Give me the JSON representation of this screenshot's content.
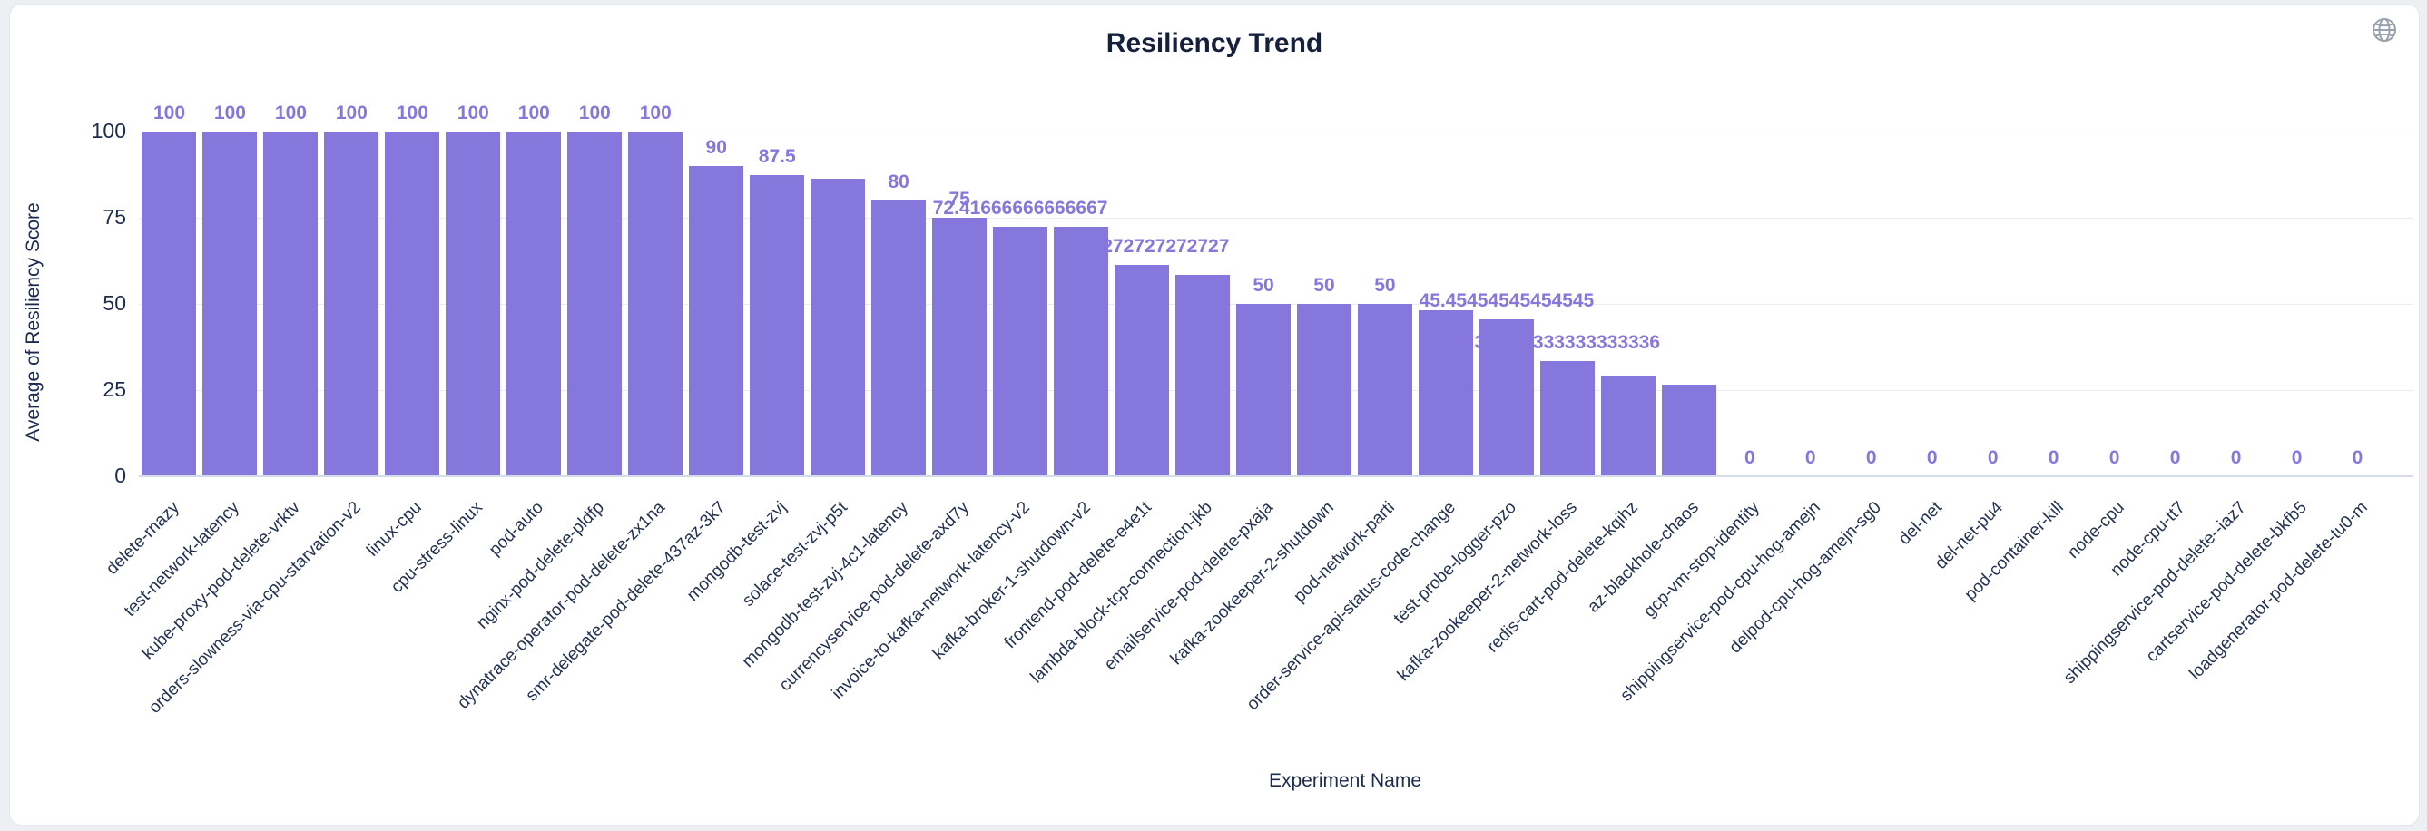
{
  "header": {
    "title": "Resiliency Trend"
  },
  "chart_data": {
    "type": "bar",
    "title": "Resiliency Trend",
    "xlabel": "Experiment Name",
    "ylabel": "Average of Resiliency Score",
    "ylim": [
      0,
      100
    ],
    "yticks": [
      0,
      25,
      50,
      75,
      100
    ],
    "grid": true,
    "bar_color": "#8577db",
    "value_label_color": "#8577db",
    "axis_text_color": "#1c2b4d",
    "bars": [
      {
        "name": "delete-rnazy",
        "value": 100,
        "label": "100"
      },
      {
        "name": "test-network-latency",
        "value": 100,
        "label": "100"
      },
      {
        "name": "kube-proxy-pod-delete-vrktv",
        "value": 100,
        "label": "100"
      },
      {
        "name": "orders-slowness-via-cpu-starvation-v2",
        "value": 100,
        "label": "100"
      },
      {
        "name": "linux-cpu",
        "value": 100,
        "label": "100"
      },
      {
        "name": "cpu-stress-linux",
        "value": 100,
        "label": "100"
      },
      {
        "name": "pod-auto",
        "value": 100,
        "label": "100"
      },
      {
        "name": "nginx-pod-delete-pldfp",
        "value": 100,
        "label": "100"
      },
      {
        "name": "dynatrace-operator-pod-delete-zx1na",
        "value": 100,
        "label": "100"
      },
      {
        "name": "smr-delegate-pod-delete-437az-3k7",
        "value": 90,
        "label": "90"
      },
      {
        "name": "mongodb-test-zvj",
        "value": 87.5,
        "label": "87.5"
      },
      {
        "name": "solace-test-zvj-p5t",
        "value": 86.36363636363636,
        "label": ""
      },
      {
        "name": "mongodb-test-zvj-4c1-latency",
        "value": 80,
        "label": "80"
      },
      {
        "name": "currencyservice-pod-delete-axd7y",
        "value": 75,
        "label": "75"
      },
      {
        "name": "invoice-to-kafka-network-latency-v2",
        "value": 72.41666666666667,
        "label": "72.41666666666667"
      },
      {
        "name": "kafka-broker-1-shutdown-v2",
        "value": 72.27272727272727,
        "label": ""
      },
      {
        "name": "frontend-pod-delete-e4e1t",
        "value": 61.27272727272727,
        "label": "61.27272727272727"
      },
      {
        "name": "lambda-block-tcp-connection-jkb",
        "value": 58.33333333333333,
        "label": ""
      },
      {
        "name": "emailservice-pod-delete-pxaja",
        "value": 50,
        "label": "50"
      },
      {
        "name": "kafka-zookeeper-2-shutdown",
        "value": 50,
        "label": "50"
      },
      {
        "name": "pod-network-parti",
        "value": 50,
        "label": "50"
      },
      {
        "name": "order-service-api-status-code-change",
        "value": 48.18181818181818,
        "label": ""
      },
      {
        "name": "test-probe-logger-pzo",
        "value": 45.45454545454545,
        "label": "45.45454545454545"
      },
      {
        "name": "kafka-zookeeper-2-network-loss",
        "value": 33.333333333333336,
        "label": "33.333333333333336"
      },
      {
        "name": "redis-cart-pod-delete-kqihz",
        "value": 29.09090909090909,
        "label": ""
      },
      {
        "name": "az-blackhole-chaos",
        "value": 26.666666666666668,
        "label": ""
      },
      {
        "name": "gcp-vm-stop-identity",
        "value": 0,
        "label": "0"
      },
      {
        "name": "shippingservice-pod-cpu-hog-amejn",
        "value": 0,
        "label": "0"
      },
      {
        "name": "delpod-cpu-hog-amejn-sg0",
        "value": 0,
        "label": "0"
      },
      {
        "name": "del-net",
        "value": 0,
        "label": "0"
      },
      {
        "name": "del-net-pu4",
        "value": 0,
        "label": "0"
      },
      {
        "name": "pod-container-kill",
        "value": 0,
        "label": "0"
      },
      {
        "name": "node-cpu",
        "value": 0,
        "label": "0"
      },
      {
        "name": "node-cpu-tt7",
        "value": 0,
        "label": "0"
      },
      {
        "name": "shippingservice-pod-delete--iaz7",
        "value": 0,
        "label": "0"
      },
      {
        "name": "cartservice-pod-delete-bkfb5",
        "value": 0,
        "label": "0"
      },
      {
        "name": "loadgenerator-pod-delete-tu0-m",
        "value": 0,
        "label": "0"
      }
    ]
  }
}
